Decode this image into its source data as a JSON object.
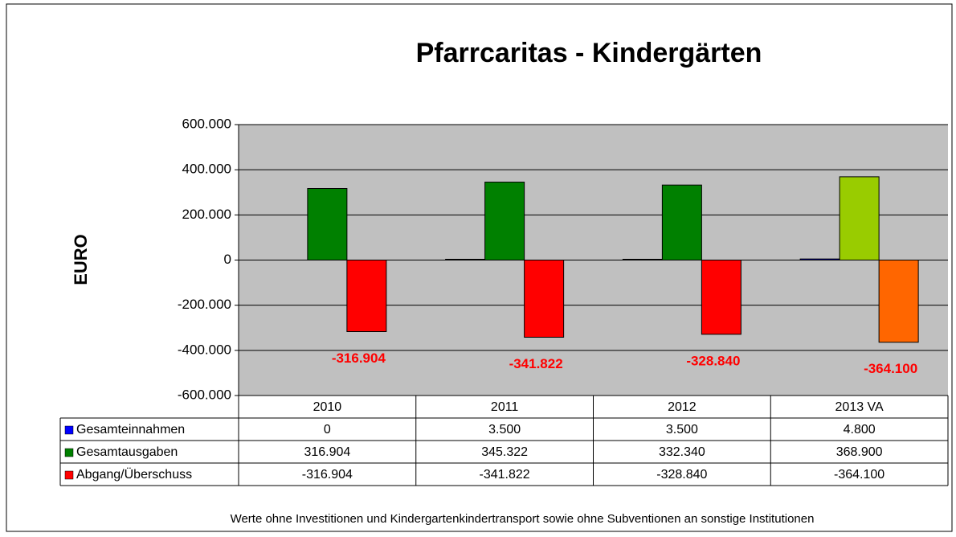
{
  "chart_data": {
    "type": "bar",
    "title": "Pfarrcaritas - Kindergärten",
    "y_label": "EURO",
    "footnote": "Werte ohne Investitionen und Kindergartenkindertransport sowie ohne Subventionen an sonstige Institutionen",
    "categories": [
      "2010",
      "2011",
      "2012",
      "2013 VA"
    ],
    "series": [
      {
        "name": "Gesamteinnahmen",
        "color": "#0000ff",
        "colors": [
          "#0000ff",
          "#0000ff",
          "#0000ff",
          "#0000ff"
        ],
        "values": [
          0,
          3500,
          3500,
          4800
        ],
        "value_labels": [
          "0",
          "3.500",
          "3.500",
          "4.800"
        ]
      },
      {
        "name": "Gesamtausgaben",
        "color": "#008000",
        "colors": [
          "#008000",
          "#008000",
          "#008000",
          "#99cc00"
        ],
        "values": [
          316904,
          345322,
          332340,
          368900
        ],
        "value_labels": [
          "316.904",
          "345.322",
          "332.340",
          "368.900"
        ]
      },
      {
        "name": "Abgang/Überschuss",
        "color": "#ff0000",
        "colors": [
          "#ff0000",
          "#ff0000",
          "#ff0000",
          "#ff6600"
        ],
        "values": [
          -316904,
          -341822,
          -328840,
          -364100
        ],
        "value_labels": [
          "-316.904",
          "-341.822",
          "-328.840",
          "-364.100"
        ]
      }
    ],
    "ylim": [
      -600000,
      600000
    ],
    "yticks": [
      {
        "value": -600000,
        "label": "-600.000"
      },
      {
        "value": -400000,
        "label": "-400.000"
      },
      {
        "value": -200000,
        "label": "-200.000"
      },
      0,
      {
        "value": 200000,
        "label": "200.000"
      },
      {
        "value": 400000,
        "label": "400.000"
      },
      {
        "value": 600000,
        "label": "600.000"
      }
    ],
    "grid": true
  }
}
